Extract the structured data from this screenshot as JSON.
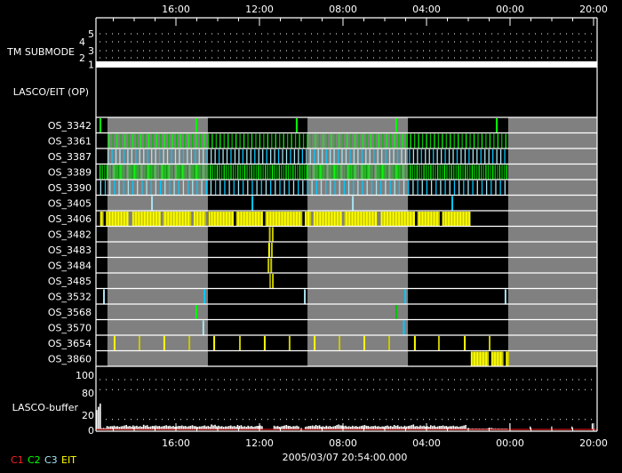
{
  "chart_data": {
    "type": "timeline",
    "x_unit": "hours from left edge",
    "xlim": [
      0,
      24
    ],
    "time_ticks": [
      {
        "label": "16:00",
        "h": 3.83
      },
      {
        "label": "12:00",
        "h": 7.83
      },
      {
        "label": "08:00",
        "h": 11.83
      },
      {
        "label": "04:00",
        "h": 15.83
      },
      {
        "label": "00:00",
        "h": 19.83
      },
      {
        "label": "20:00",
        "h": 23.83
      }
    ],
    "timestamp": "2005/03/07 20:54:00.000",
    "tm_submode": {
      "label": "TM SUBMODE",
      "levels": [
        "1",
        "2",
        "3",
        "4",
        "5"
      ],
      "value": 1
    },
    "section_label": "LASCO/EIT (OP)",
    "shaded_intervals": [
      [
        0.55,
        5.36
      ],
      [
        10.13,
        14.94
      ],
      [
        19.74,
        24
      ]
    ],
    "colors": {
      "C1": "#ff2020",
      "C2": "#00ff00",
      "C3": "#a8e4f0",
      "EIT": "#ffff00",
      "green_dark": "#00c000",
      "cyan": "#00c8ff",
      "olive": "#c8c800",
      "shade": "#808080"
    },
    "rows": [
      {
        "name": "OS_3342",
        "palette": [
          "#00ff00"
        ],
        "events": [
          0.17,
          4.77,
          9.57,
          14.34,
          19.15
        ]
      },
      {
        "name": "OS_3361",
        "palette": [
          "#00ff00",
          "#00c000"
        ],
        "dense": {
          "start": 0.6,
          "end": 19.7,
          "period": 0.19
        }
      },
      {
        "name": "OS_3387",
        "palette": [
          "#a8e4f0",
          "#00c8ff",
          "#a8e4f0"
        ],
        "dense": {
          "start": 0.55,
          "end": 19.7,
          "period": 0.19
        }
      },
      {
        "name": "OS_3389",
        "palette": [
          "#00ff00",
          "#00c000",
          "#00a000"
        ],
        "dense": {
          "start": 0.17,
          "end": 19.7,
          "period": 0.11
        }
      },
      {
        "name": "OS_3390",
        "palette": [
          "#a8e4f0",
          "#00c8ff"
        ],
        "dense": {
          "start": 0.2,
          "end": 19.7,
          "period": 0.22
        }
      },
      {
        "name": "OS_3405",
        "palette": [
          "#a8e4f0",
          "#00c8ff"
        ],
        "events": [
          2.64,
          7.45,
          12.26,
          17.02
        ]
      },
      {
        "name": "OS_3406",
        "palette": [
          "#ffff00",
          "#c8c800"
        ],
        "dense": {
          "start": 0.2,
          "end": 17.9,
          "period": 0.07
        },
        "gaps": [
          0.4,
          1.6,
          3.1,
          4.6,
          5.3,
          6.6,
          8.0,
          9.9,
          10.3,
          11.8,
          13.5,
          15.3,
          16.5
        ]
      },
      {
        "name": "OS_3482",
        "palette": [
          "#c8c800",
          "#c8c800"
        ],
        "events": [
          8.28,
          8.42
        ]
      },
      {
        "name": "OS_3483",
        "palette": [
          "#ffff00",
          "#c8c800"
        ],
        "events": [
          8.25,
          8.38
        ]
      },
      {
        "name": "OS_3484",
        "palette": [
          "#c8c800",
          "#c8c800"
        ],
        "events": [
          8.22,
          8.35
        ]
      },
      {
        "name": "OS_3485",
        "palette": [
          "#a0a000",
          "#c8c800"
        ],
        "events": [
          8.3,
          8.43
        ]
      },
      {
        "name": "OS_3532",
        "palette": [
          "#a8e4f0",
          "#00c8ff"
        ],
        "events": [
          0.34,
          5.15,
          9.96,
          14.77,
          19.57
        ]
      },
      {
        "name": "OS_3568",
        "palette": [
          "#00ff00",
          "#00c000"
        ],
        "events": [
          4.77,
          14.34
        ]
      },
      {
        "name": "OS_3570",
        "palette": [
          "#a8e4f0",
          "#00c8ff"
        ],
        "events": [
          5.1,
          14.7
        ]
      },
      {
        "name": "OS_3654",
        "palette": [
          "#ffff00",
          "#c8c800"
        ],
        "events": [
          0.85,
          2.04,
          3.23,
          4.43,
          5.62,
          6.85,
          8.04,
          9.23,
          10.43,
          11.62,
          12.81,
          14.0,
          15.23,
          16.38,
          17.62,
          18.81
        ]
      },
      {
        "name": "OS_3860",
        "palette": [
          "#ffff00",
          "#c8c800"
        ],
        "dense": {
          "start": 17.95,
          "end": 19.75,
          "period": 0.07
        },
        "gaps": [
          18.85,
          19.55
        ]
      }
    ],
    "buffer": {
      "label": "LASCO-buffer",
      "ylim": [
        0,
        100
      ],
      "yticks": [
        "0",
        "20",
        "80",
        "100"
      ],
      "ytick_values": [
        0,
        20,
        80,
        100
      ],
      "dotted_levels": [
        20,
        80,
        100
      ],
      "step_hours": 0.25,
      "values": [
        52,
        3,
        7,
        8,
        7,
        9,
        7,
        8,
        7,
        10,
        7,
        8,
        7,
        9,
        8,
        7,
        8,
        7,
        9,
        7,
        8,
        7,
        10,
        8,
        7,
        8,
        7,
        9,
        7,
        8,
        7,
        8,
        0,
        0,
        8,
        7,
        9,
        7,
        8,
        0,
        7,
        8,
        9,
        7,
        8,
        7,
        10,
        8,
        7,
        8,
        7,
        9,
        7,
        8,
        7,
        8,
        7,
        9,
        7,
        8,
        10,
        7,
        8,
        7,
        9,
        7,
        8,
        7,
        8,
        7,
        9,
        2,
        2,
        2,
        2,
        3,
        2,
        2,
        2,
        0
      ],
      "spikes": [
        [
          19.8,
          12
        ],
        [
          20.77,
          6
        ],
        [
          21.8,
          6
        ],
        [
          22.77,
          6
        ],
        [
          23.74,
          12
        ]
      ]
    },
    "legend": [
      {
        "label": "C1",
        "color": "#ff2020"
      },
      {
        "label": "C2",
        "color": "#00ff00"
      },
      {
        "label": "C3",
        "color": "#a8e4f0"
      },
      {
        "label": "EIT",
        "color": "#ffff00"
      }
    ]
  }
}
